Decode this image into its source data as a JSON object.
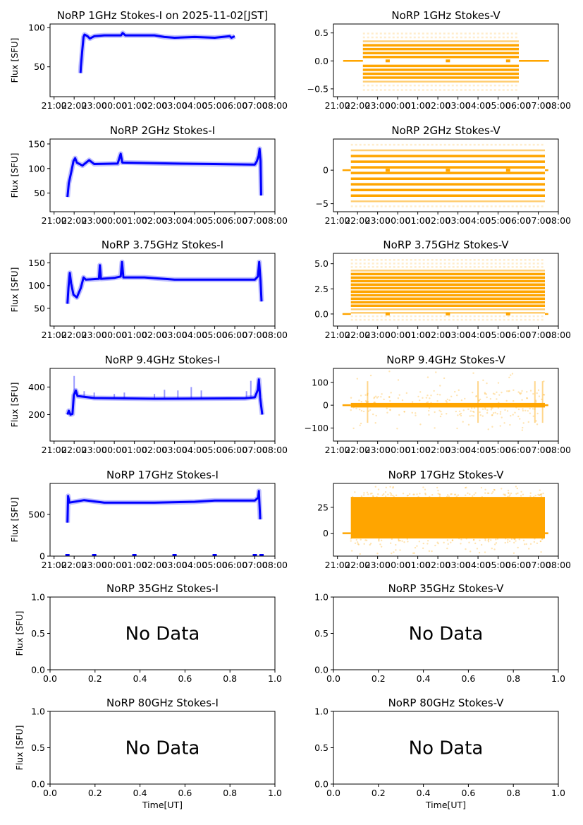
{
  "figure": {
    "background": "#ffffff",
    "colors": {
      "stokes_i": "#0000ff",
      "stokes_v": "#ffa500"
    }
  },
  "chart_data": [
    {
      "type": "scatter",
      "title": "NoRP 1GHz Stokes-I on 2025-11-02[JST]",
      "ylabel": "Flux [SFU]",
      "xlabel": "",
      "xlim": [
        "20:48",
        "08:00"
      ],
      "xticks": [
        "21:00",
        "22:00",
        "23:00",
        "00:00",
        "01:00",
        "02:00",
        "03:00",
        "04:00",
        "05:00",
        "06:00",
        "07:00",
        "08:00"
      ],
      "ylim": [
        12,
        104.5
      ],
      "yticks": [
        "50",
        "100"
      ],
      "color": "#0000ff",
      "points": [
        [
          "22:19",
          42
        ],
        [
          "22:20",
          50
        ],
        [
          "22:24",
          70
        ],
        [
          "22:28",
          88
        ],
        [
          "22:31",
          91
        ],
        [
          "22:40",
          89
        ],
        [
          "22:47",
          86
        ],
        [
          "23:00",
          89
        ],
        [
          "23:30",
          90
        ],
        [
          "00:20",
          90
        ],
        [
          "00:25",
          93
        ],
        [
          "00:33",
          90
        ],
        [
          "01:30",
          90
        ],
        [
          "02:00",
          90
        ],
        [
          "02:30",
          88
        ],
        [
          "03:00",
          87
        ],
        [
          "04:00",
          88
        ],
        [
          "05:00",
          87
        ],
        [
          "05:45",
          89
        ],
        [
          "05:50",
          87
        ],
        [
          "06:00",
          89
        ]
      ]
    },
    {
      "type": "scatter",
      "title": "NoRP 1GHz Stokes-V",
      "ylabel": "",
      "xlabel": "",
      "xlim": [
        "20:48",
        "08:00"
      ],
      "xticks": [
        "21:00",
        "22:00",
        "23:00",
        "00:00",
        "01:00",
        "02:00",
        "03:00",
        "04:00",
        "05:00",
        "06:00",
        "07:00",
        "08:00"
      ],
      "ylim": [
        -0.64,
        0.66
      ],
      "yticks": [
        "−0.5",
        "0.0",
        "0.5"
      ],
      "color": "#ffa500",
      "zero_segments": [
        [
          "21:17",
          "22:16"
        ],
        [
          "06:02",
          "07:32"
        ]
      ],
      "zero_markers": [
        "23:30",
        "02:30",
        "05:30"
      ],
      "active": [
        "22:16",
        "06:02"
      ],
      "levels": [
        {
          "value": 0.07,
          "weight": "strong"
        },
        {
          "value": 0.14,
          "weight": "strong"
        },
        {
          "value": 0.21,
          "weight": "strong"
        },
        {
          "value": 0.28,
          "weight": "strong"
        },
        {
          "value": 0.35,
          "weight": "medium"
        },
        {
          "value": 0.42,
          "weight": "light"
        },
        {
          "value": 0.49,
          "weight": "light"
        },
        {
          "value": -0.09,
          "weight": "strong"
        },
        {
          "value": -0.16,
          "weight": "strong"
        },
        {
          "value": -0.23,
          "weight": "strong"
        },
        {
          "value": -0.3,
          "weight": "strong"
        },
        {
          "value": -0.37,
          "weight": "medium"
        },
        {
          "value": -0.44,
          "weight": "light"
        },
        {
          "value": -0.52,
          "weight": "light"
        }
      ]
    },
    {
      "type": "scatter",
      "title": "NoRP 2GHz Stokes-I",
      "ylabel": "Flux [SFU]",
      "xlabel": "",
      "xlim": [
        "20:48",
        "08:00"
      ],
      "xticks": [
        "21:00",
        "22:00",
        "23:00",
        "00:00",
        "01:00",
        "02:00",
        "03:00",
        "04:00",
        "05:00",
        "06:00",
        "07:00",
        "08:00"
      ],
      "ylim": [
        12,
        160
      ],
      "yticks": [
        "50",
        "100",
        "150"
      ],
      "color": "#0000ff",
      "points": [
        [
          "21:40",
          42
        ],
        [
          "21:44",
          70
        ],
        [
          "21:52",
          95
        ],
        [
          "21:58",
          115
        ],
        [
          "22:03",
          121
        ],
        [
          "22:08",
          112
        ],
        [
          "22:25",
          106
        ],
        [
          "22:45",
          117
        ],
        [
          "23:00",
          109
        ],
        [
          "00:10",
          110
        ],
        [
          "00:19",
          130
        ],
        [
          "00:24",
          112
        ],
        [
          "03:00",
          110
        ],
        [
          "07:00",
          108
        ],
        [
          "07:06",
          115
        ],
        [
          "07:11",
          125
        ],
        [
          "07:14",
          140
        ],
        [
          "07:17",
          115
        ],
        [
          "07:19",
          45
        ]
      ]
    },
    {
      "type": "scatter",
      "title": "NoRP 2GHz Stokes-V",
      "ylabel": "",
      "xlabel": "",
      "xlim": [
        "20:48",
        "08:00"
      ],
      "xticks": [
        "21:00",
        "22:00",
        "23:00",
        "00:00",
        "01:00",
        "02:00",
        "03:00",
        "04:00",
        "05:00",
        "06:00",
        "07:00",
        "08:00"
      ],
      "ylim": [
        -6.2,
        4.65
      ],
      "yticks": [
        "−5",
        "0"
      ],
      "color": "#ffa500",
      "zero_segments": [
        [
          "21:15",
          "21:40"
        ],
        [
          "07:20",
          "07:30"
        ]
      ],
      "zero_markers": [
        "23:30",
        "02:30",
        "05:30"
      ],
      "active": [
        "21:40",
        "07:20"
      ],
      "levels": [
        {
          "value": 0.42,
          "weight": "strong"
        },
        {
          "value": 1.27,
          "weight": "strong"
        },
        {
          "value": 2.11,
          "weight": "strong"
        },
        {
          "value": 2.96,
          "weight": "medium"
        },
        {
          "value": 3.8,
          "weight": "light"
        },
        {
          "value": -0.42,
          "weight": "strong"
        },
        {
          "value": -1.27,
          "weight": "strong"
        },
        {
          "value": -2.11,
          "weight": "strong"
        },
        {
          "value": -2.96,
          "weight": "strong"
        },
        {
          "value": -3.8,
          "weight": "strong"
        },
        {
          "value": -4.65,
          "weight": "medium"
        },
        {
          "value": -5.4,
          "weight": "light"
        }
      ]
    },
    {
      "type": "scatter",
      "title": "NoRP 3.75GHz Stokes-I",
      "ylabel": "Flux [SFU]",
      "xlabel": "",
      "xlim": [
        "20:48",
        "08:00"
      ],
      "xticks": [
        "21:00",
        "22:00",
        "23:00",
        "00:00",
        "01:00",
        "02:00",
        "03:00",
        "04:00",
        "05:00",
        "06:00",
        "07:00",
        "08:00"
      ],
      "ylim": [
        11,
        171
      ],
      "yticks": [
        "50",
        "100",
        "150"
      ],
      "color": "#0000ff",
      "points": [
        [
          "21:40",
          60
        ],
        [
          "21:43",
          95
        ],
        [
          "21:47",
          128
        ],
        [
          "21:51",
          105
        ],
        [
          "21:58",
          80
        ],
        [
          "22:08",
          74
        ],
        [
          "22:20",
          95
        ],
        [
          "22:28",
          118
        ],
        [
          "22:35",
          113
        ],
        [
          "23:14",
          115
        ],
        [
          "23:17",
          145
        ],
        [
          "23:20",
          115
        ],
        [
          "00:00",
          117
        ],
        [
          "00:19",
          120
        ],
        [
          "00:23",
          152
        ],
        [
          "00:27",
          118
        ],
        [
          "01:30",
          118
        ],
        [
          "03:00",
          113
        ],
        [
          "07:00",
          113
        ],
        [
          "07:09",
          120
        ],
        [
          "07:13",
          152
        ],
        [
          "07:17",
          110
        ],
        [
          "07:20",
          65
        ]
      ]
    },
    {
      "type": "scatter",
      "title": "NoRP 3.75GHz Stokes-V",
      "ylabel": "",
      "xlabel": "",
      "xlim": [
        "20:48",
        "08:00"
      ],
      "xticks": [
        "21:00",
        "22:00",
        "23:00",
        "00:00",
        "01:00",
        "02:00",
        "03:00",
        "04:00",
        "05:00",
        "06:00",
        "07:00",
        "08:00"
      ],
      "ylim": [
        -1.2,
        6.03
      ],
      "yticks": [
        "0.0",
        "2.5",
        "5.0"
      ],
      "color": "#ffa500",
      "zero_segments": [
        [
          "21:15",
          "21:40"
        ],
        [
          "07:20",
          "07:30"
        ]
      ],
      "zero_markers": [
        "23:30",
        "02:30",
        "05:30"
      ],
      "active": [
        "21:40",
        "07:20"
      ],
      "levels": [
        {
          "value": -0.58,
          "weight": "light"
        },
        {
          "value": -0.23,
          "weight": "light"
        },
        {
          "value": 0.12,
          "weight": "medium"
        },
        {
          "value": 0.47,
          "weight": "medium"
        },
        {
          "value": 0.82,
          "weight": "strong"
        },
        {
          "value": 1.17,
          "weight": "strong"
        },
        {
          "value": 1.52,
          "weight": "strong"
        },
        {
          "value": 1.87,
          "weight": "strong"
        },
        {
          "value": 2.22,
          "weight": "strong"
        },
        {
          "value": 2.57,
          "weight": "strong"
        },
        {
          "value": 2.92,
          "weight": "strong"
        },
        {
          "value": 3.27,
          "weight": "strong"
        },
        {
          "value": 3.62,
          "weight": "strong"
        },
        {
          "value": 3.97,
          "weight": "strong"
        },
        {
          "value": 4.32,
          "weight": "medium"
        },
        {
          "value": 4.67,
          "weight": "light"
        },
        {
          "value": 5.02,
          "weight": "light"
        },
        {
          "value": 5.37,
          "weight": "light"
        }
      ]
    },
    {
      "type": "scatter",
      "title": "NoRP 9.4GHz Stokes-I",
      "ylabel": "Flux [SFU]",
      "xlabel": "",
      "xlim": [
        "20:48",
        "08:00"
      ],
      "xticks": [
        "21:00",
        "22:00",
        "23:00",
        "00:00",
        "01:00",
        "02:00",
        "03:00",
        "04:00",
        "05:00",
        "06:00",
        "07:00",
        "08:00"
      ],
      "ylim": [
        8,
        535
      ],
      "yticks": [
        "200",
        "400"
      ],
      "color": "#0000ff",
      "points": [
        [
          "21:40",
          200
        ],
        [
          "21:44",
          228
        ],
        [
          "21:49",
          200
        ],
        [
          "21:55",
          205
        ],
        [
          "21:59",
          340
        ],
        [
          "22:05",
          375
        ],
        [
          "22:10",
          335
        ],
        [
          "23:00",
          320
        ],
        [
          "02:00",
          315
        ],
        [
          "06:30",
          318
        ],
        [
          "07:00",
          325
        ],
        [
          "07:09",
          380
        ],
        [
          "07:12",
          455
        ],
        [
          "07:16",
          320
        ],
        [
          "07:22",
          200
        ]
      ],
      "spikes": [
        [
          "22:00",
          480
        ],
        [
          "22:30",
          370
        ],
        [
          "23:00",
          360
        ],
        [
          "00:00",
          350
        ],
        [
          "00:30",
          360
        ],
        [
          "02:00",
          350
        ],
        [
          "02:30",
          380
        ],
        [
          "03:10",
          375
        ],
        [
          "03:50",
          400
        ],
        [
          "04:20",
          375
        ],
        [
          "06:35",
          370
        ],
        [
          "06:48",
          445
        ]
      ]
    },
    {
      "type": "scatter",
      "title": "NoRP 9.4GHz Stokes-V",
      "ylabel": "",
      "xlabel": "",
      "xlim": [
        "20:48",
        "08:00"
      ],
      "xticks": [
        "21:00",
        "22:00",
        "23:00",
        "00:00",
        "01:00",
        "02:00",
        "03:00",
        "04:00",
        "05:00",
        "06:00",
        "07:00",
        "08:00"
      ],
      "ylim": [
        -157,
        161
      ],
      "yticks": [
        "−100",
        "0",
        "100"
      ],
      "color": "#ffa500",
      "zero_segments": [
        [
          "21:15",
          "21:40"
        ],
        [
          "07:20",
          "07:30"
        ]
      ],
      "active": [
        "21:40",
        "07:20"
      ],
      "band": [
        -10,
        10
      ],
      "outliers": [
        -110,
        150
      ],
      "spike_times": [
        "22:30",
        "04:00",
        "06:50",
        "07:13"
      ]
    },
    {
      "type": "scatter",
      "title": "NoRP 17GHz Stokes-I",
      "ylabel": "Flux [SFU]",
      "xlabel": "",
      "xlim": [
        "20:48",
        "08:00"
      ],
      "xticks": [
        "21:00",
        "22:00",
        "23:00",
        "00:00",
        "01:00",
        "02:00",
        "03:00",
        "04:00",
        "05:00",
        "06:00",
        "07:00",
        "08:00"
      ],
      "ylim": [
        0,
        870
      ],
      "yticks": [
        "0",
        "500"
      ],
      "color": "#0000ff",
      "points": [
        [
          "21:40",
          400
        ],
        [
          "21:42",
          720
        ],
        [
          "21:46",
          640
        ],
        [
          "22:30",
          670
        ],
        [
          "23:00",
          655
        ],
        [
          "23:30",
          640
        ],
        [
          "02:00",
          640
        ],
        [
          "04:00",
          650
        ],
        [
          "05:00",
          665
        ],
        [
          "07:00",
          665
        ],
        [
          "07:10",
          700
        ],
        [
          "07:12",
          780
        ],
        [
          "07:16",
          440
        ]
      ],
      "zero_markers": [
        "21:40",
        "23:00",
        "01:00",
        "03:00",
        "05:00",
        "07:00",
        "07:20"
      ]
    },
    {
      "type": "scatter",
      "title": "NoRP 17GHz Stokes-V",
      "ylabel": "",
      "xlabel": "",
      "xlim": [
        "20:48",
        "08:00"
      ],
      "xticks": [
        "21:00",
        "22:00",
        "23:00",
        "00:00",
        "01:00",
        "02:00",
        "03:00",
        "04:00",
        "05:00",
        "06:00",
        "07:00",
        "08:00"
      ],
      "ylim": [
        -22,
        48
      ],
      "yticks": [
        "0",
        "25"
      ],
      "color": "#ffa500",
      "zero_segments": [
        [
          "21:15",
          "21:40"
        ],
        [
          "07:20",
          "07:30"
        ]
      ],
      "active": [
        "21:40",
        "07:20"
      ],
      "band": [
        -5,
        35
      ],
      "outliers": [
        -20,
        45
      ]
    },
    {
      "type": "empty",
      "title": "NoRP 35GHz Stokes-I",
      "ylabel": "Flux [SFU]",
      "xlabel": "",
      "annotation": "No Data",
      "xlim": [
        0,
        1
      ],
      "ylim": [
        0,
        1
      ],
      "xticks": [
        "0.0",
        "0.2",
        "0.4",
        "0.6",
        "0.8",
        "1.0"
      ],
      "yticks": [
        "0.0",
        "0.5",
        "1.0"
      ]
    },
    {
      "type": "empty",
      "title": "NoRP 35GHz Stokes-V",
      "ylabel": "",
      "xlabel": "",
      "annotation": "No Data",
      "xlim": [
        0,
        1
      ],
      "ylim": [
        0,
        1
      ],
      "xticks": [
        "0.0",
        "0.2",
        "0.4",
        "0.6",
        "0.8",
        "1.0"
      ],
      "yticks": [
        "0.0",
        "0.5",
        "1.0"
      ]
    },
    {
      "type": "empty",
      "title": "NoRP 80GHz Stokes-I",
      "ylabel": "Flux [SFU]",
      "xlabel": "Time[UT]",
      "annotation": "No Data",
      "xlim": [
        0,
        1
      ],
      "ylim": [
        0,
        1
      ],
      "xticks": [
        "0.0",
        "0.2",
        "0.4",
        "0.6",
        "0.8",
        "1.0"
      ],
      "yticks": [
        "0.0",
        "0.5",
        "1.0"
      ]
    },
    {
      "type": "empty",
      "title": "NoRP 80GHz Stokes-V",
      "ylabel": "",
      "xlabel": "Time[UT]",
      "annotation": "No Data",
      "xlim": [
        0,
        1
      ],
      "ylim": [
        0,
        1
      ],
      "xticks": [
        "0.0",
        "0.2",
        "0.4",
        "0.6",
        "0.8",
        "1.0"
      ],
      "yticks": [
        "0.0",
        "0.5",
        "1.0"
      ]
    }
  ]
}
